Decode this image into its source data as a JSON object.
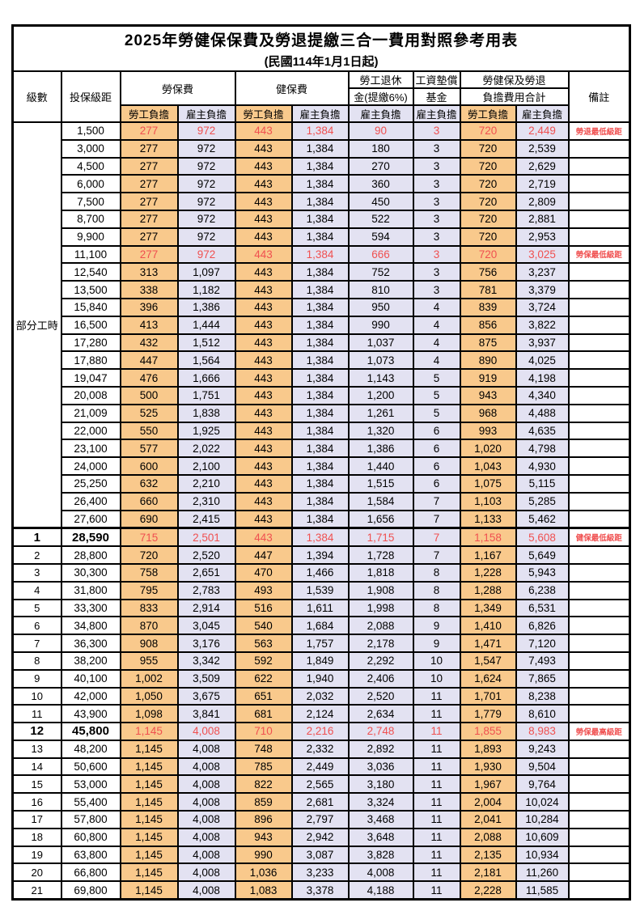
{
  "title": "2025年勞健保保費及勞退提繳三合一費用對照參考用表",
  "subtitle": "(民國114年1月1日起)",
  "header": {
    "level": "級數",
    "bracket": "投保級距",
    "labor_fee": "勞保費",
    "health_fee": "健保費",
    "pension_line1": "勞工退休",
    "pension_line2": "金(提繳6%)",
    "fund_line1": "工資墊償",
    "fund_line2": "基金",
    "total_line1": "勞健保及勞退",
    "total_line2": "負擔費用合計",
    "remark": "備註",
    "employee_share": "勞工負擔",
    "employer_share": "雇主負擔"
  },
  "part_time_label": "部分工時",
  "colors": {
    "employee_bg": "#F9C98C",
    "employer_bg": "#E3E2F2",
    "highlight_red": "#F05050",
    "border": "#000000"
  },
  "rows": [
    {
      "bracket": "1,500",
      "labor_emp": "277",
      "labor_er": "972",
      "health_emp": "443",
      "health_er": "1,384",
      "pension": "90",
      "fund": "3",
      "total_emp": "720",
      "total_er": "2,449",
      "remark": "勞退最低級距",
      "red": true,
      "bold": false
    },
    {
      "bracket": "3,000",
      "labor_emp": "277",
      "labor_er": "972",
      "health_emp": "443",
      "health_er": "1,384",
      "pension": "180",
      "fund": "3",
      "total_emp": "720",
      "total_er": "2,539",
      "remark": "",
      "red": false,
      "bold": false
    },
    {
      "bracket": "4,500",
      "labor_emp": "277",
      "labor_er": "972",
      "health_emp": "443",
      "health_er": "1,384",
      "pension": "270",
      "fund": "3",
      "total_emp": "720",
      "total_er": "2,629",
      "remark": "",
      "red": false,
      "bold": false
    },
    {
      "bracket": "6,000",
      "labor_emp": "277",
      "labor_er": "972",
      "health_emp": "443",
      "health_er": "1,384",
      "pension": "360",
      "fund": "3",
      "total_emp": "720",
      "total_er": "2,719",
      "remark": "",
      "red": false,
      "bold": false
    },
    {
      "bracket": "7,500",
      "labor_emp": "277",
      "labor_er": "972",
      "health_emp": "443",
      "health_er": "1,384",
      "pension": "450",
      "fund": "3",
      "total_emp": "720",
      "total_er": "2,809",
      "remark": "",
      "red": false,
      "bold": false
    },
    {
      "bracket": "8,700",
      "labor_emp": "277",
      "labor_er": "972",
      "health_emp": "443",
      "health_er": "1,384",
      "pension": "522",
      "fund": "3",
      "total_emp": "720",
      "total_er": "2,881",
      "remark": "",
      "red": false,
      "bold": false
    },
    {
      "bracket": "9,900",
      "labor_emp": "277",
      "labor_er": "972",
      "health_emp": "443",
      "health_er": "1,384",
      "pension": "594",
      "fund": "3",
      "total_emp": "720",
      "total_er": "2,953",
      "remark": "",
      "red": false,
      "bold": false
    },
    {
      "bracket": "11,100",
      "labor_emp": "277",
      "labor_er": "972",
      "health_emp": "443",
      "health_er": "1,384",
      "pension": "666",
      "fund": "3",
      "total_emp": "720",
      "total_er": "3,025",
      "remark": "勞保最低級距",
      "red": true,
      "bold": false
    },
    {
      "bracket": "12,540",
      "labor_emp": "313",
      "labor_er": "1,097",
      "health_emp": "443",
      "health_er": "1,384",
      "pension": "752",
      "fund": "3",
      "total_emp": "756",
      "total_er": "3,237",
      "remark": "",
      "red": false,
      "bold": false
    },
    {
      "bracket": "13,500",
      "labor_emp": "338",
      "labor_er": "1,182",
      "health_emp": "443",
      "health_er": "1,384",
      "pension": "810",
      "fund": "3",
      "total_emp": "781",
      "total_er": "3,379",
      "remark": "",
      "red": false,
      "bold": false
    },
    {
      "bracket": "15,840",
      "labor_emp": "396",
      "labor_er": "1,386",
      "health_emp": "443",
      "health_er": "1,384",
      "pension": "950",
      "fund": "4",
      "total_emp": "839",
      "total_er": "3,724",
      "remark": "",
      "red": false,
      "bold": false
    },
    {
      "bracket": "16,500",
      "labor_emp": "413",
      "labor_er": "1,444",
      "health_emp": "443",
      "health_er": "1,384",
      "pension": "990",
      "fund": "4",
      "total_emp": "856",
      "total_er": "3,822",
      "remark": "",
      "red": false,
      "bold": false
    },
    {
      "bracket": "17,280",
      "labor_emp": "432",
      "labor_er": "1,512",
      "health_emp": "443",
      "health_er": "1,384",
      "pension": "1,037",
      "fund": "4",
      "total_emp": "875",
      "total_er": "3,937",
      "remark": "",
      "red": false,
      "bold": false
    },
    {
      "bracket": "17,880",
      "labor_emp": "447",
      "labor_er": "1,564",
      "health_emp": "443",
      "health_er": "1,384",
      "pension": "1,073",
      "fund": "4",
      "total_emp": "890",
      "total_er": "4,025",
      "remark": "",
      "red": false,
      "bold": false
    },
    {
      "bracket": "19,047",
      "labor_emp": "476",
      "labor_er": "1,666",
      "health_emp": "443",
      "health_er": "1,384",
      "pension": "1,143",
      "fund": "5",
      "total_emp": "919",
      "total_er": "4,198",
      "remark": "",
      "red": false,
      "bold": false
    },
    {
      "bracket": "20,008",
      "labor_emp": "500",
      "labor_er": "1,751",
      "health_emp": "443",
      "health_er": "1,384",
      "pension": "1,200",
      "fund": "5",
      "total_emp": "943",
      "total_er": "4,340",
      "remark": "",
      "red": false,
      "bold": false
    },
    {
      "bracket": "21,009",
      "labor_emp": "525",
      "labor_er": "1,838",
      "health_emp": "443",
      "health_er": "1,384",
      "pension": "1,261",
      "fund": "5",
      "total_emp": "968",
      "total_er": "4,488",
      "remark": "",
      "red": false,
      "bold": false
    },
    {
      "bracket": "22,000",
      "labor_emp": "550",
      "labor_er": "1,925",
      "health_emp": "443",
      "health_er": "1,384",
      "pension": "1,320",
      "fund": "6",
      "total_emp": "993",
      "total_er": "4,635",
      "remark": "",
      "red": false,
      "bold": false
    },
    {
      "bracket": "23,100",
      "labor_emp": "577",
      "labor_er": "2,022",
      "health_emp": "443",
      "health_er": "1,384",
      "pension": "1,386",
      "fund": "6",
      "total_emp": "1,020",
      "total_er": "4,798",
      "remark": "",
      "red": false,
      "bold": false
    },
    {
      "bracket": "24,000",
      "labor_emp": "600",
      "labor_er": "2,100",
      "health_emp": "443",
      "health_er": "1,384",
      "pension": "1,440",
      "fund": "6",
      "total_emp": "1,043",
      "total_er": "4,930",
      "remark": "",
      "red": false,
      "bold": false
    },
    {
      "bracket": "25,250",
      "labor_emp": "632",
      "labor_er": "2,210",
      "health_emp": "443",
      "health_er": "1,384",
      "pension": "1,515",
      "fund": "6",
      "total_emp": "1,075",
      "total_er": "5,115",
      "remark": "",
      "red": false,
      "bold": false
    },
    {
      "bracket": "26,400",
      "labor_emp": "660",
      "labor_er": "2,310",
      "health_emp": "443",
      "health_er": "1,384",
      "pension": "1,584",
      "fund": "7",
      "total_emp": "1,103",
      "total_er": "5,285",
      "remark": "",
      "red": false,
      "bold": false
    },
    {
      "bracket": "27,600",
      "labor_emp": "690",
      "labor_er": "2,415",
      "health_emp": "443",
      "health_er": "1,384",
      "pension": "1,656",
      "fund": "7",
      "total_emp": "1,133",
      "total_er": "5,462",
      "remark": "",
      "red": false,
      "bold": false
    },
    {
      "level": "1",
      "bracket": "28,590",
      "labor_emp": "715",
      "labor_er": "2,501",
      "health_emp": "443",
      "health_er": "1,384",
      "pension": "1,715",
      "fund": "7",
      "total_emp": "1,158",
      "total_er": "5,608",
      "remark": "健保最低級距",
      "red": true,
      "bold": true,
      "sep": true
    },
    {
      "level": "2",
      "bracket": "28,800",
      "labor_emp": "720",
      "labor_er": "2,520",
      "health_emp": "447",
      "health_er": "1,394",
      "pension": "1,728",
      "fund": "7",
      "total_emp": "1,167",
      "total_er": "5,649",
      "remark": "",
      "red": false,
      "bold": false
    },
    {
      "level": "3",
      "bracket": "30,300",
      "labor_emp": "758",
      "labor_er": "2,651",
      "health_emp": "470",
      "health_er": "1,466",
      "pension": "1,818",
      "fund": "8",
      "total_emp": "1,228",
      "total_er": "5,943",
      "remark": "",
      "red": false,
      "bold": false
    },
    {
      "level": "4",
      "bracket": "31,800",
      "labor_emp": "795",
      "labor_er": "2,783",
      "health_emp": "493",
      "health_er": "1,539",
      "pension": "1,908",
      "fund": "8",
      "total_emp": "1,288",
      "total_er": "6,238",
      "remark": "",
      "red": false,
      "bold": false
    },
    {
      "level": "5",
      "bracket": "33,300",
      "labor_emp": "833",
      "labor_er": "2,914",
      "health_emp": "516",
      "health_er": "1,611",
      "pension": "1,998",
      "fund": "8",
      "total_emp": "1,349",
      "total_er": "6,531",
      "remark": "",
      "red": false,
      "bold": false
    },
    {
      "level": "6",
      "bracket": "34,800",
      "labor_emp": "870",
      "labor_er": "3,045",
      "health_emp": "540",
      "health_er": "1,684",
      "pension": "2,088",
      "fund": "9",
      "total_emp": "1,410",
      "total_er": "6,826",
      "remark": "",
      "red": false,
      "bold": false
    },
    {
      "level": "7",
      "bracket": "36,300",
      "labor_emp": "908",
      "labor_er": "3,176",
      "health_emp": "563",
      "health_er": "1,757",
      "pension": "2,178",
      "fund": "9",
      "total_emp": "1,471",
      "total_er": "7,120",
      "remark": "",
      "red": false,
      "bold": false
    },
    {
      "level": "8",
      "bracket": "38,200",
      "labor_emp": "955",
      "labor_er": "3,342",
      "health_emp": "592",
      "health_er": "1,849",
      "pension": "2,292",
      "fund": "10",
      "total_emp": "1,547",
      "total_er": "7,493",
      "remark": "",
      "red": false,
      "bold": false
    },
    {
      "level": "9",
      "bracket": "40,100",
      "labor_emp": "1,002",
      "labor_er": "3,509",
      "health_emp": "622",
      "health_er": "1,940",
      "pension": "2,406",
      "fund": "10",
      "total_emp": "1,624",
      "total_er": "7,865",
      "remark": "",
      "red": false,
      "bold": false
    },
    {
      "level": "10",
      "bracket": "42,000",
      "labor_emp": "1,050",
      "labor_er": "3,675",
      "health_emp": "651",
      "health_er": "2,032",
      "pension": "2,520",
      "fund": "11",
      "total_emp": "1,701",
      "total_er": "8,238",
      "remark": "",
      "red": false,
      "bold": false
    },
    {
      "level": "11",
      "bracket": "43,900",
      "labor_emp": "1,098",
      "labor_er": "3,841",
      "health_emp": "681",
      "health_er": "2,124",
      "pension": "2,634",
      "fund": "11",
      "total_emp": "1,779",
      "total_er": "8,610",
      "remark": "",
      "red": false,
      "bold": false
    },
    {
      "level": "12",
      "bracket": "45,800",
      "labor_emp": "1,145",
      "labor_er": "4,008",
      "health_emp": "710",
      "health_er": "2,216",
      "pension": "2,748",
      "fund": "11",
      "total_emp": "1,855",
      "total_er": "8,983",
      "remark": "勞保最高級距",
      "red": true,
      "bold": true
    },
    {
      "level": "13",
      "bracket": "48,200",
      "labor_emp": "1,145",
      "labor_er": "4,008",
      "health_emp": "748",
      "health_er": "2,332",
      "pension": "2,892",
      "fund": "11",
      "total_emp": "1,893",
      "total_er": "9,243",
      "remark": "",
      "red": false,
      "bold": false
    },
    {
      "level": "14",
      "bracket": "50,600",
      "labor_emp": "1,145",
      "labor_er": "4,008",
      "health_emp": "785",
      "health_er": "2,449",
      "pension": "3,036",
      "fund": "11",
      "total_emp": "1,930",
      "total_er": "9,504",
      "remark": "",
      "red": false,
      "bold": false
    },
    {
      "level": "15",
      "bracket": "53,000",
      "labor_emp": "1,145",
      "labor_er": "4,008",
      "health_emp": "822",
      "health_er": "2,565",
      "pension": "3,180",
      "fund": "11",
      "total_emp": "1,967",
      "total_er": "9,764",
      "remark": "",
      "red": false,
      "bold": false
    },
    {
      "level": "16",
      "bracket": "55,400",
      "labor_emp": "1,145",
      "labor_er": "4,008",
      "health_emp": "859",
      "health_er": "2,681",
      "pension": "3,324",
      "fund": "11",
      "total_emp": "2,004",
      "total_er": "10,024",
      "remark": "",
      "red": false,
      "bold": false
    },
    {
      "level": "17",
      "bracket": "57,800",
      "labor_emp": "1,145",
      "labor_er": "4,008",
      "health_emp": "896",
      "health_er": "2,797",
      "pension": "3,468",
      "fund": "11",
      "total_emp": "2,041",
      "total_er": "10,284",
      "remark": "",
      "red": false,
      "bold": false
    },
    {
      "level": "18",
      "bracket": "60,800",
      "labor_emp": "1,145",
      "labor_er": "4,008",
      "health_emp": "943",
      "health_er": "2,942",
      "pension": "3,648",
      "fund": "11",
      "total_emp": "2,088",
      "total_er": "10,609",
      "remark": "",
      "red": false,
      "bold": false
    },
    {
      "level": "19",
      "bracket": "63,800",
      "labor_emp": "1,145",
      "labor_er": "4,008",
      "health_emp": "990",
      "health_er": "3,087",
      "pension": "3,828",
      "fund": "11",
      "total_emp": "2,135",
      "total_er": "10,934",
      "remark": "",
      "red": false,
      "bold": false
    },
    {
      "level": "20",
      "bracket": "66,800",
      "labor_emp": "1,145",
      "labor_er": "4,008",
      "health_emp": "1,036",
      "health_er": "3,233",
      "pension": "4,008",
      "fund": "11",
      "total_emp": "2,181",
      "total_er": "11,260",
      "remark": "",
      "red": false,
      "bold": false
    },
    {
      "level": "21",
      "bracket": "69,800",
      "labor_emp": "1,145",
      "labor_er": "4,008",
      "health_emp": "1,083",
      "health_er": "3,378",
      "pension": "4,188",
      "fund": "11",
      "total_emp": "2,228",
      "total_er": "11,585",
      "remark": "",
      "red": false,
      "bold": false
    }
  ]
}
